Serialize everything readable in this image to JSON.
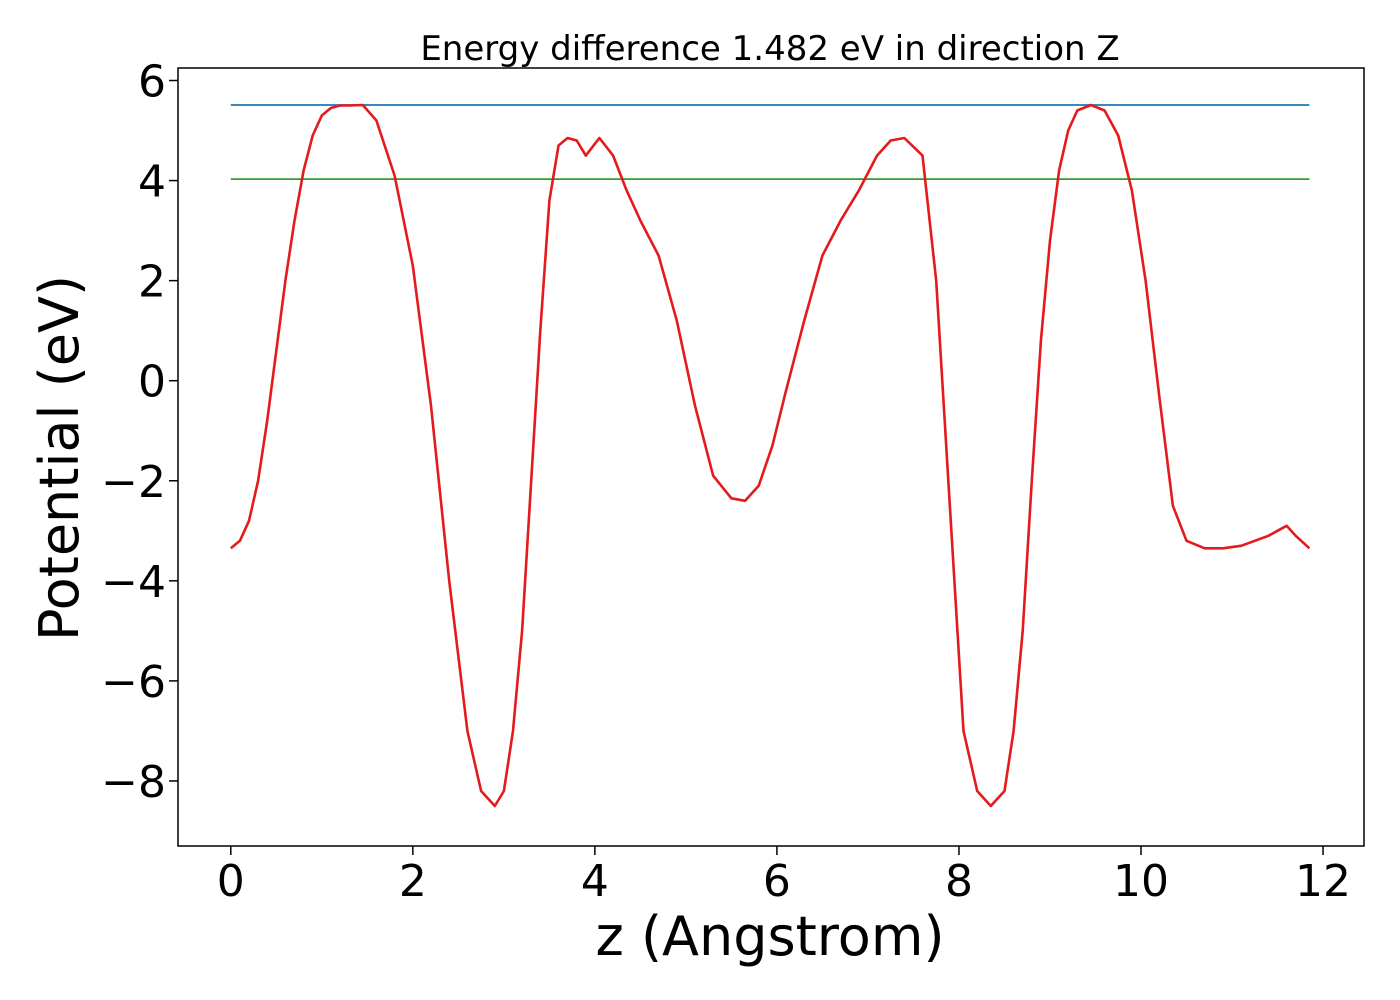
{
  "chart_data": {
    "type": "line",
    "title": "Energy difference 1.482 eV in direction Z",
    "xlabel": "z (Angstrom)",
    "ylabel": "Potential (eV)",
    "xlim": [
      -0.58,
      12.45
    ],
    "ylim": [
      -9.3,
      6.25
    ],
    "xticks": [
      0,
      2,
      4,
      6,
      8,
      10,
      12
    ],
    "xtick_labels": [
      "0",
      "2",
      "4",
      "6",
      "8",
      "10",
      "12"
    ],
    "yticks": [
      -8,
      -6,
      -4,
      -2,
      0,
      2,
      4,
      6
    ],
    "ytick_labels": [
      "−8",
      "−6",
      "−4",
      "−2",
      "0",
      "2",
      "4",
      "6"
    ],
    "grid": false,
    "series": [
      {
        "color": "#1f77b4",
        "x": [
          0,
          11.85
        ],
        "y": [
          5.51,
          5.51
        ]
      },
      {
        "color": "#2ca02c",
        "x": [
          0,
          11.85
        ],
        "y": [
          4.03,
          4.03
        ]
      },
      {
        "color": "#e41a1c",
        "x": [
          0.0,
          0.1,
          0.2,
          0.3,
          0.4,
          0.5,
          0.6,
          0.7,
          0.8,
          0.9,
          1.0,
          1.1,
          1.2,
          1.3,
          1.45,
          1.6,
          1.8,
          2.0,
          2.2,
          2.4,
          2.6,
          2.75,
          2.9,
          3.0,
          3.1,
          3.2,
          3.3,
          3.4,
          3.5,
          3.6,
          3.7,
          3.8,
          3.9,
          4.05,
          4.2,
          4.35,
          4.5,
          4.7,
          4.9,
          5.1,
          5.3,
          5.5,
          5.65,
          5.8,
          5.95,
          6.1,
          6.3,
          6.5,
          6.7,
          6.9,
          7.1,
          7.25,
          7.4,
          7.6,
          7.75,
          7.85,
          7.95,
          8.05,
          8.2,
          8.35,
          8.5,
          8.6,
          8.7,
          8.8,
          8.9,
          9.0,
          9.1,
          9.2,
          9.3,
          9.45,
          9.6,
          9.75,
          9.9,
          10.05,
          10.2,
          10.35,
          10.5,
          10.7,
          10.9,
          11.1,
          11.25,
          11.4,
          11.5,
          11.6,
          11.7,
          11.85
        ],
        "y": [
          -3.35,
          -3.2,
          -2.8,
          -2.0,
          -0.8,
          0.6,
          2.0,
          3.2,
          4.2,
          4.9,
          5.3,
          5.45,
          5.5,
          5.5,
          5.51,
          5.2,
          4.1,
          2.3,
          -0.5,
          -4.0,
          -7.0,
          -8.2,
          -8.5,
          -8.2,
          -7.0,
          -5.0,
          -2.0,
          1.0,
          3.6,
          4.7,
          4.85,
          4.8,
          4.5,
          4.85,
          4.5,
          3.8,
          3.2,
          2.5,
          1.2,
          -0.5,
          -1.9,
          -2.35,
          -2.4,
          -2.1,
          -1.3,
          -0.2,
          1.2,
          2.5,
          3.2,
          3.8,
          4.5,
          4.8,
          4.85,
          4.5,
          2.0,
          -1.0,
          -4.0,
          -7.0,
          -8.2,
          -8.5,
          -8.2,
          -7.0,
          -5.0,
          -2.0,
          0.8,
          2.8,
          4.2,
          5.0,
          5.4,
          5.51,
          5.4,
          4.9,
          3.8,
          2.0,
          -0.3,
          -2.5,
          -3.2,
          -3.35,
          -3.35,
          -3.3,
          -3.2,
          -3.1,
          -3.0,
          -2.9,
          -3.1,
          -3.35
        ]
      }
    ]
  }
}
